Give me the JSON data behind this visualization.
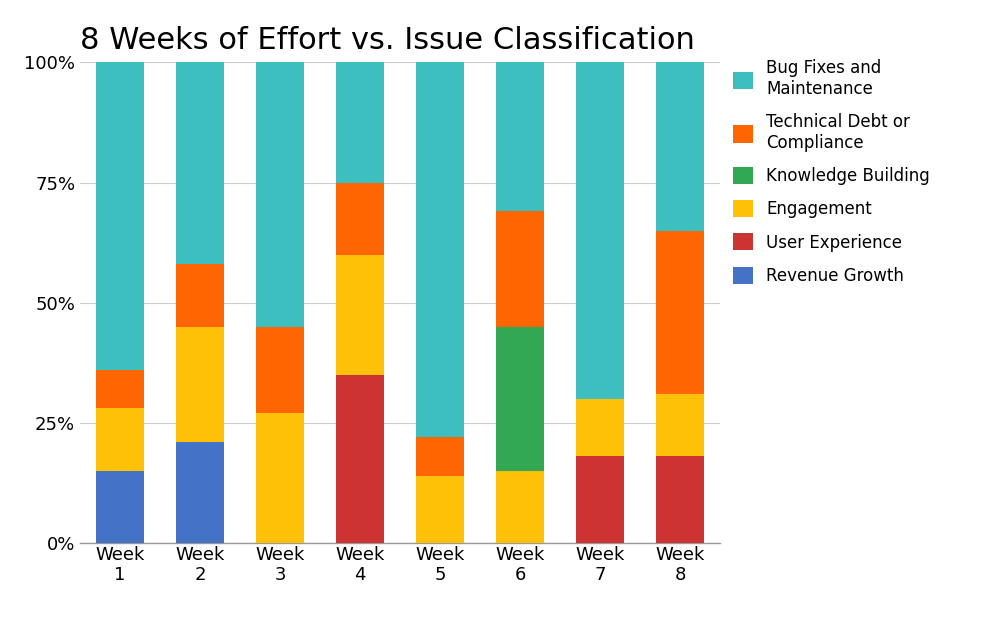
{
  "title": "8 Weeks of Effort vs. Issue Classification",
  "categories": [
    "Week\n1",
    "Week\n2",
    "Week\n3",
    "Week\n4",
    "Week\n5",
    "Week\n6",
    "Week\n7",
    "Week\n8"
  ],
  "series": [
    {
      "label": "Revenue Growth",
      "color": "#4472C4",
      "values": [
        15,
        21,
        0,
        0,
        0,
        0,
        0,
        0
      ]
    },
    {
      "label": "User Experience",
      "color": "#CC3333",
      "values": [
        0,
        0,
        0,
        35,
        0,
        0,
        18,
        18
      ]
    },
    {
      "label": "Engagement",
      "color": "#FFC107",
      "values": [
        13,
        24,
        27,
        25,
        14,
        15,
        12,
        13
      ]
    },
    {
      "label": "Knowledge Building",
      "color": "#33A853",
      "values": [
        0,
        0,
        0,
        0,
        0,
        30,
        0,
        0
      ]
    },
    {
      "label": "Technical Debt or\nCompliance",
      "color": "#FF6600",
      "values": [
        8,
        13,
        18,
        15,
        8,
        24,
        0,
        34
      ]
    },
    {
      "label": "Bug Fixes and\nMaintenance",
      "color": "#3DBFBF",
      "values": [
        64,
        42,
        55,
        25,
        78,
        31,
        70,
        35
      ]
    }
  ],
  "ylim": [
    0,
    100
  ],
  "yticks": [
    0,
    25,
    50,
    75,
    100
  ],
  "ytick_labels": [
    "0%",
    "25%",
    "50%",
    "75%",
    "100%"
  ],
  "background_color": "#ffffff",
  "grid_color": "#cccccc",
  "title_fontsize": 22,
  "legend_fontsize": 12,
  "tick_fontsize": 13,
  "bar_width": 0.6,
  "figwidth": 10.0,
  "figheight": 6.24,
  "dpi": 100
}
